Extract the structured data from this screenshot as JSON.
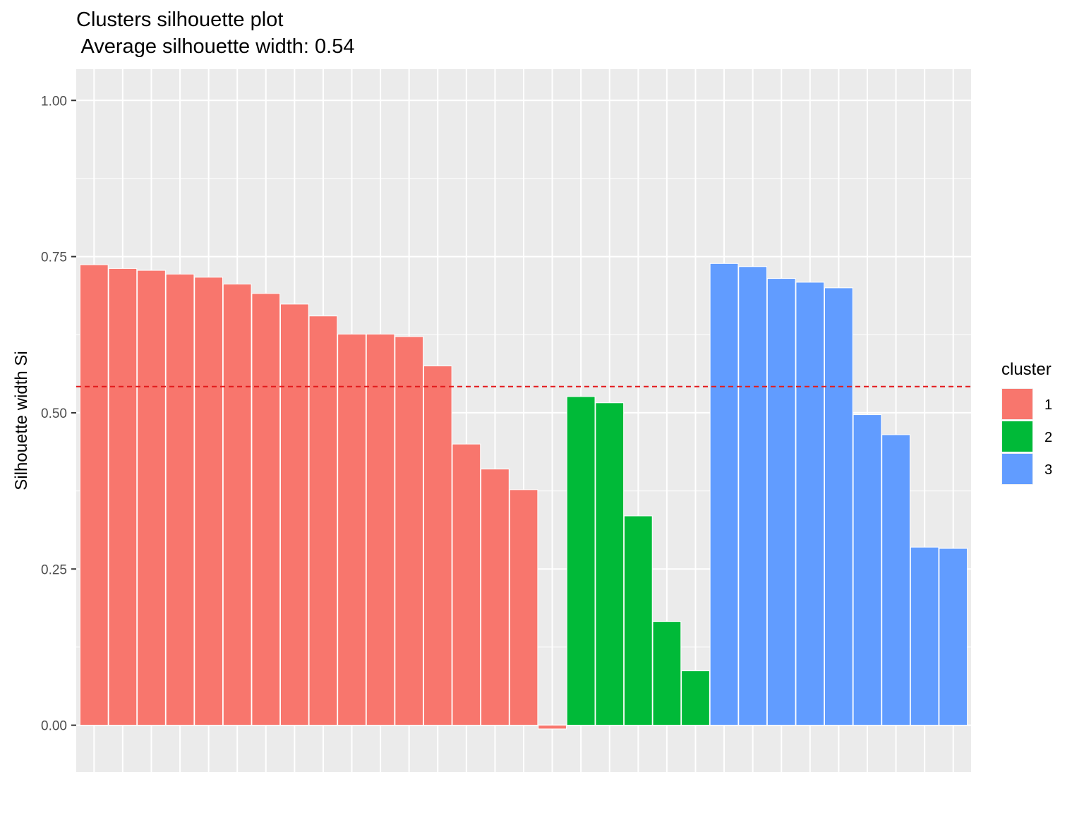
{
  "chart_data": {
    "type": "bar",
    "title": "Clusters silhouette plot",
    "subtitle": " Average silhouette width: 0.54",
    "xlabel": "",
    "ylabel": "Silhouette width Si",
    "ylim": [
      -0.075,
      1.05
    ],
    "yticks": [
      0.0,
      0.25,
      0.5,
      0.75,
      1.0
    ],
    "ytick_labels": [
      "0.00",
      "0.25",
      "0.50",
      "0.75",
      "1.00"
    ],
    "average_line": 0.542,
    "grid": true,
    "legend": {
      "title": "cluster",
      "position": "right",
      "entries": [
        {
          "label": "1",
          "color": "#F8766D"
        },
        {
          "label": "2",
          "color": "#00BA38"
        },
        {
          "label": "3",
          "color": "#619CFF"
        }
      ]
    },
    "average_line_color": "#E31A1C",
    "panel_background": "#EBEBEB",
    "values": [
      0.737,
      0.731,
      0.728,
      0.722,
      0.717,
      0.706,
      0.691,
      0.674,
      0.655,
      0.626,
      0.626,
      0.622,
      0.575,
      0.45,
      0.41,
      0.377,
      -0.006,
      0.526,
      0.516,
      0.335,
      0.166,
      0.087,
      0.739,
      0.734,
      0.715,
      0.709,
      0.7,
      0.497,
      0.465,
      0.285,
      0.283
    ],
    "clusters": [
      "1",
      "1",
      "1",
      "1",
      "1",
      "1",
      "1",
      "1",
      "1",
      "1",
      "1",
      "1",
      "1",
      "1",
      "1",
      "1",
      "1",
      "2",
      "2",
      "2",
      "2",
      "2",
      "3",
      "3",
      "3",
      "3",
      "3",
      "3",
      "3",
      "3",
      "3"
    ]
  }
}
